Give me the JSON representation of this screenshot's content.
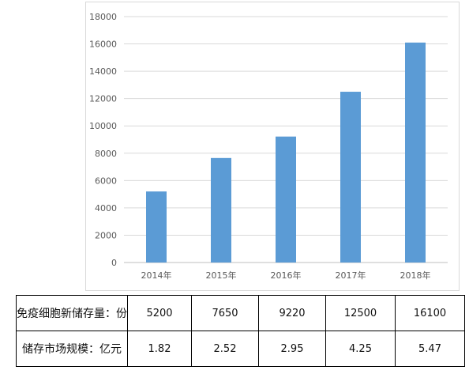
{
  "chart_data": {
    "type": "bar",
    "categories": [
      "2014年",
      "2015年",
      "2016年",
      "2017年",
      "2018年"
    ],
    "values": [
      5200,
      7650,
      9220,
      12500,
      16100
    ],
    "ylim": [
      0,
      18000
    ],
    "yticks": [
      0,
      2000,
      4000,
      6000,
      8000,
      10000,
      12000,
      14000,
      16000,
      18000
    ],
    "grid": true,
    "bar_color": "#5b9bd5",
    "title": "",
    "xlabel": "",
    "ylabel": ""
  },
  "table": {
    "rows": [
      {
        "label": "免疫细胞新储存量：份",
        "values": [
          "5200",
          "7650",
          "9220",
          "12500",
          "16100"
        ]
      },
      {
        "label": "储存市场规模：亿元",
        "values": [
          "1.82",
          "2.52",
          "2.95",
          "4.25",
          "5.47"
        ]
      }
    ]
  }
}
